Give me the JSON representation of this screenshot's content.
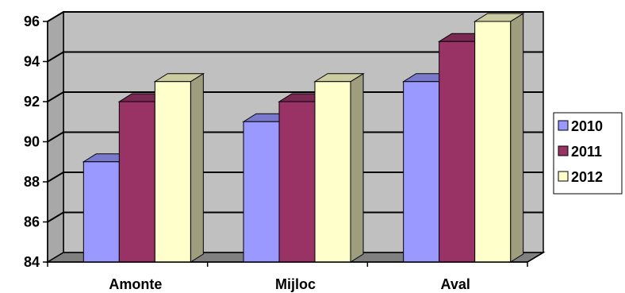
{
  "chart_data": {
    "type": "bar",
    "style": "3d-clustered-column",
    "categories": [
      "Amonte",
      "Mijloc",
      "Aval"
    ],
    "series": [
      {
        "name": "2010",
        "values": [
          89,
          91,
          93
        ],
        "color": "#9999ff"
      },
      {
        "name": "2011",
        "values": [
          92,
          92,
          95
        ],
        "color": "#993366"
      },
      {
        "name": "2012",
        "values": [
          93,
          93,
          96
        ],
        "color": "#ffffcc"
      }
    ],
    "ylim": [
      84,
      96
    ],
    "yticks": [
      84,
      86,
      88,
      90,
      92,
      94,
      96
    ],
    "grid": true,
    "legend": "right",
    "colors": {
      "plot_wall": "#c0c0c0",
      "floor": "#808080",
      "gridline": "#000000"
    }
  }
}
